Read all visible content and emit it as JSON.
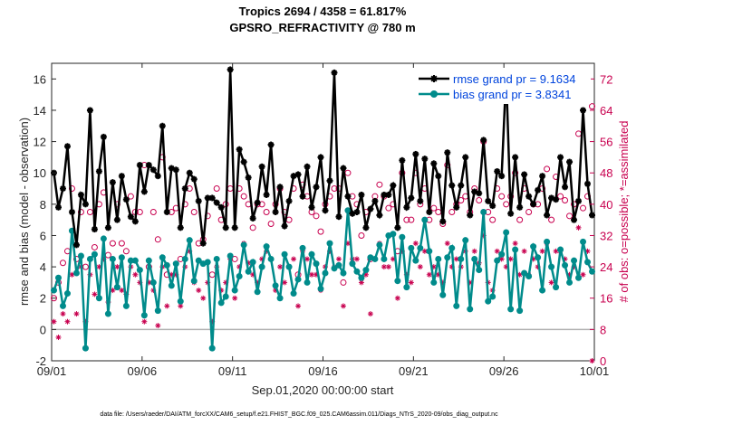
{
  "chart_data": {
    "type": "line",
    "title": "Tropics 2694 / 4358 = 61.817%",
    "subtitle": "GPSRO_REFRACTIVITY @ 780 m",
    "xlabel": "Sep.01,2020 00:00:00 start",
    "ylabel": "rmse and bias (model - observation)",
    "ylabel_right": "# of obs: o=possible; *=assimilated",
    "xlim_days": [
      0,
      30
    ],
    "ylim": [
      -2,
      17
    ],
    "ylim_right": [
      0,
      76
    ],
    "x_ticks": [
      {
        "day": 0,
        "label": "09/01"
      },
      {
        "day": 5,
        "label": "09/06"
      },
      {
        "day": 10,
        "label": "09/11"
      },
      {
        "day": 15,
        "label": "09/16"
      },
      {
        "day": 20,
        "label": "09/21"
      },
      {
        "day": 25,
        "label": "09/26"
      },
      {
        "day": 30,
        "label": "10/01"
      }
    ],
    "y_ticks": [
      -2,
      0,
      2,
      4,
      6,
      8,
      10,
      12,
      14,
      16
    ],
    "y_ticks_right": [
      0,
      8,
      16,
      24,
      32,
      40,
      48,
      56,
      64,
      72
    ],
    "zero_line": 0,
    "grid": false,
    "legend_position": "top-right",
    "footnote": "data file: /Users/raeder/DAI/ATM_forcXX/CAM6_setup/f.e21.FHIST_BGC.f09_025.CAM6assim.011/Diags_NTrS_2020-09/obs_diag_output.nc",
    "x_step_days": 0.25,
    "series": [
      {
        "name": "rmse grand pr = 9.1634",
        "color": "#000000",
        "marker": "asterisk",
        "axis": "left",
        "values": [
          10.0,
          7.8,
          9.0,
          11.7,
          7.5,
          5.4,
          8.6,
          8.0,
          14.0,
          6.4,
          10.1,
          12.3,
          6.5,
          9.4,
          7.0,
          9.8,
          8.3,
          7.2,
          6.9,
          10.5,
          8.8,
          10.5,
          10.2,
          9.8,
          13.0,
          7.5,
          10.3,
          10.2,
          6.5,
          9.0,
          10.0,
          9.6,
          8.2,
          5.5,
          8.4,
          8.4,
          8.1,
          7.8,
          6.5,
          16.6,
          6.5,
          11.5,
          10.7,
          9.7,
          7.1,
          8.1,
          10.4,
          8.6,
          11.8,
          7.5,
          9.1,
          6.6,
          8.2,
          9.8,
          9.9,
          8.5,
          10.4,
          7.8,
          9.1,
          11.0,
          7.6,
          9.5,
          16.4,
          7.2,
          10.3,
          8.5,
          7.4,
          7.5,
          8.6,
          6.5,
          7.7,
          8.2,
          7.3,
          8.6,
          8.6,
          9.2,
          6.5,
          10.8,
          7.8,
          8.4,
          11.2,
          8.2,
          10.9,
          7.5,
          10.6,
          9.8,
          6.9,
          11.3,
          9.2,
          7.8,
          9.2,
          11.0,
          7.3,
          8.8,
          8.7,
          12.1,
          8.2,
          7.9,
          10.1,
          9.8,
          16.3,
          7.4,
          11.0,
          7.8,
          9.9,
          8.5,
          8.0,
          8.9,
          9.8,
          7.3,
          8.4,
          8.3,
          11.0,
          9.1,
          10.7,
          7.0,
          8.2,
          14.0,
          9.3,
          7.3
        ]
      },
      {
        "name": "bias grand pr = 3.8341",
        "color": "#008b8b",
        "marker": "dot",
        "axis": "left",
        "values": [
          2.5,
          3.3,
          1.5,
          2.3,
          6.3,
          3.6,
          4.7,
          -1.2,
          4.5,
          4.8,
          2.0,
          5.8,
          1.0,
          4.5,
          2.7,
          4.6,
          1.5,
          4.4,
          4.4,
          3.8,
          0.9,
          4.4,
          3.0,
          1.2,
          4.6,
          4.1,
          2.8,
          4.2,
          1.8,
          4.5,
          5.7,
          3.1,
          4.4,
          4.2,
          4.3,
          -1.2,
          4.5,
          1.7,
          2.1,
          4.7,
          2.5,
          3.4,
          5.4,
          3.7,
          4.3,
          2.4,
          4.0,
          5.3,
          4.5,
          2.8,
          2.0,
          4.8,
          4.0,
          2.3,
          3.2,
          5.2,
          3.0,
          4.8,
          4.2,
          2.6,
          3.6,
          5.5,
          3.9,
          4.1,
          3.6,
          7.6,
          4.2,
          3.7,
          3.3,
          3.8,
          4.6,
          4.5,
          5.4,
          4.5,
          6.0,
          6.1,
          3.1,
          5.9,
          2.7,
          5.2,
          4.4,
          5.2,
          7.0,
          5.0,
          3.0,
          4.5,
          2.2,
          4.6,
          5.2,
          1.5,
          4.5,
          5.7,
          1.3,
          4.5,
          3.8,
          7.5,
          1.8,
          2.1,
          4.4,
          4.8,
          6.2,
          1.3,
          5.1,
          1.2,
          3.6,
          3.4,
          5.3,
          4.6,
          2.5,
          5.6,
          4.0,
          2.7,
          5.1,
          4.1,
          3.0,
          4.4,
          3.3,
          5.6,
          4.3,
          3.7
        ]
      },
      {
        "name": "possible obs (o)",
        "color": "#c8004f",
        "marker": "circle",
        "axis": "right",
        "values": [
          16,
          20,
          25,
          28,
          44,
          26,
          38,
          24,
          38,
          29,
          40,
          43,
          27,
          30,
          40,
          30,
          28,
          42,
          38,
          38,
          50,
          24,
          38,
          31,
          52,
          22,
          38,
          39,
          26,
          40,
          44,
          38,
          30,
          31,
          37,
          22,
          44,
          36,
          40,
          44,
          26,
          44,
          42,
          40,
          34,
          40,
          40,
          38,
          35,
          40,
          44,
          38,
          36,
          44,
          22,
          45,
          42,
          38,
          37,
          33,
          40,
          42,
          44,
          44,
          20,
          48,
          42,
          40,
          32,
          38,
          26,
          42,
          45,
          42,
          39,
          40,
          28,
          48,
          36,
          36,
          48,
          40,
          44,
          36,
          39,
          38,
          35,
          50,
          38,
          40,
          41,
          42,
          38,
          44,
          41,
          56,
          38,
          36,
          44,
          42,
          40,
          42,
          48,
          36,
          44,
          38,
          40,
          40,
          44,
          49,
          36,
          47,
          42,
          41,
          37,
          40,
          58,
          39,
          42,
          65
        ]
      },
      {
        "name": "assimilated obs (*)",
        "color": "#c8004f",
        "marker": "asterisk",
        "axis": "right",
        "values": [
          10,
          6,
          12,
          10,
          22,
          12,
          24,
          10,
          22,
          17,
          24,
          26,
          15,
          18,
          24,
          18,
          17,
          24,
          22,
          20,
          10,
          20,
          18,
          9,
          24,
          14,
          22,
          22,
          14,
          24,
          28,
          20,
          18,
          16,
          20,
          10,
          24,
          18,
          20,
          26,
          16,
          24,
          30,
          25,
          22,
          20,
          26,
          28,
          26,
          18,
          24,
          20,
          24,
          26,
          14,
          28,
          26,
          22,
          22,
          18,
          24,
          28,
          24,
          26,
          14,
          30,
          26,
          26,
          20,
          22,
          12,
          26,
          30,
          24,
          24,
          26,
          16,
          28,
          22,
          20,
          30,
          24,
          28,
          22,
          24,
          22,
          20,
          30,
          24,
          26,
          24,
          28,
          20,
          28,
          25,
          32,
          20,
          18,
          28,
          26,
          24,
          26,
          30,
          22,
          28,
          22,
          26,
          24,
          28,
          30,
          20,
          28,
          28,
          26,
          22,
          24,
          34,
          22,
          28,
          0
        ]
      }
    ]
  }
}
